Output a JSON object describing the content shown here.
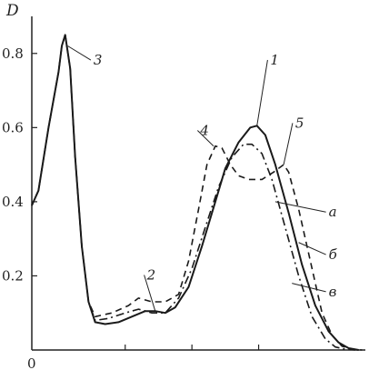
{
  "chart_data": {
    "type": "line",
    "title": "",
    "ylabel": "D",
    "xlabel": "",
    "xlim": [
      0,
      1
    ],
    "ylim": [
      0,
      0.9
    ],
    "y_ticks": [
      {
        "value": 0.2,
        "label": "0.2"
      },
      {
        "value": 0.4,
        "label": "0.4"
      },
      {
        "value": 0.6,
        "label": "0.6"
      },
      {
        "value": 0.8,
        "label": "0.8"
      }
    ],
    "x_origin_label": "0",
    "x_minor_ticks": [
      0.28,
      0.48,
      0.68
    ],
    "grid": false,
    "legend": "none",
    "series": [
      {
        "label_marker": "а",
        "style": "solid",
        "points": [
          [
            0.0,
            0.39
          ],
          [
            0.02,
            0.43
          ],
          [
            0.05,
            0.6
          ],
          [
            0.08,
            0.75
          ],
          [
            0.09,
            0.82
          ],
          [
            0.1,
            0.85
          ],
          [
            0.115,
            0.76
          ],
          [
            0.13,
            0.52
          ],
          [
            0.15,
            0.28
          ],
          [
            0.17,
            0.13
          ],
          [
            0.19,
            0.075
          ],
          [
            0.22,
            0.07
          ],
          [
            0.26,
            0.075
          ],
          [
            0.3,
            0.09
          ],
          [
            0.34,
            0.105
          ],
          [
            0.37,
            0.105
          ],
          [
            0.4,
            0.1
          ],
          [
            0.43,
            0.115
          ],
          [
            0.47,
            0.17
          ],
          [
            0.51,
            0.28
          ],
          [
            0.55,
            0.4
          ],
          [
            0.58,
            0.49
          ],
          [
            0.62,
            0.56
          ],
          [
            0.655,
            0.6
          ],
          [
            0.675,
            0.605
          ],
          [
            0.7,
            0.58
          ],
          [
            0.73,
            0.5
          ],
          [
            0.77,
            0.37
          ],
          [
            0.81,
            0.23
          ],
          [
            0.85,
            0.12
          ],
          [
            0.89,
            0.05
          ],
          [
            0.92,
            0.02
          ],
          [
            0.95,
            0.005
          ],
          [
            0.98,
            0.0
          ]
        ]
      },
      {
        "label_marker": "б",
        "style": "dashed",
        "points": [
          [
            0.0,
            0.39
          ],
          [
            0.02,
            0.43
          ],
          [
            0.05,
            0.6
          ],
          [
            0.08,
            0.75
          ],
          [
            0.09,
            0.82
          ],
          [
            0.1,
            0.85
          ],
          [
            0.115,
            0.76
          ],
          [
            0.13,
            0.52
          ],
          [
            0.15,
            0.28
          ],
          [
            0.17,
            0.13
          ],
          [
            0.19,
            0.09
          ],
          [
            0.24,
            0.1
          ],
          [
            0.29,
            0.12
          ],
          [
            0.32,
            0.14
          ],
          [
            0.36,
            0.13
          ],
          [
            0.4,
            0.13
          ],
          [
            0.44,
            0.15
          ],
          [
            0.47,
            0.24
          ],
          [
            0.5,
            0.38
          ],
          [
            0.525,
            0.5
          ],
          [
            0.55,
            0.55
          ],
          [
            0.57,
            0.545
          ],
          [
            0.595,
            0.5
          ],
          [
            0.62,
            0.47
          ],
          [
            0.65,
            0.46
          ],
          [
            0.69,
            0.46
          ],
          [
            0.725,
            0.48
          ],
          [
            0.755,
            0.5
          ],
          [
            0.77,
            0.48
          ],
          [
            0.8,
            0.38
          ],
          [
            0.84,
            0.22
          ],
          [
            0.87,
            0.1
          ],
          [
            0.9,
            0.04
          ],
          [
            0.93,
            0.01
          ],
          [
            0.96,
            0.002
          ],
          [
            0.99,
            0.0
          ]
        ]
      },
      {
        "label_marker": "в",
        "style": "dash-dot",
        "points": [
          [
            0.0,
            0.39
          ],
          [
            0.02,
            0.43
          ],
          [
            0.05,
            0.6
          ],
          [
            0.08,
            0.75
          ],
          [
            0.09,
            0.82
          ],
          [
            0.1,
            0.85
          ],
          [
            0.115,
            0.76
          ],
          [
            0.13,
            0.52
          ],
          [
            0.15,
            0.28
          ],
          [
            0.17,
            0.13
          ],
          [
            0.19,
            0.08
          ],
          [
            0.23,
            0.085
          ],
          [
            0.28,
            0.1
          ],
          [
            0.32,
            0.11
          ],
          [
            0.36,
            0.1
          ],
          [
            0.4,
            0.1
          ],
          [
            0.44,
            0.14
          ],
          [
            0.48,
            0.22
          ],
          [
            0.52,
            0.33
          ],
          [
            0.56,
            0.44
          ],
          [
            0.6,
            0.52
          ],
          [
            0.635,
            0.555
          ],
          [
            0.66,
            0.555
          ],
          [
            0.69,
            0.53
          ],
          [
            0.72,
            0.46
          ],
          [
            0.76,
            0.33
          ],
          [
            0.8,
            0.2
          ],
          [
            0.84,
            0.09
          ],
          [
            0.88,
            0.03
          ],
          [
            0.91,
            0.008
          ],
          [
            0.94,
            0.002
          ],
          [
            0.97,
            0.0
          ]
        ]
      }
    ],
    "annotations": [
      {
        "text": "1",
        "at": [
          0.715,
          0.77
        ],
        "leader_to": [
          0.675,
          0.605
        ]
      },
      {
        "text": "2",
        "at": [
          0.345,
          0.19
        ],
        "leader_to": [
          0.37,
          0.105
        ]
      },
      {
        "text": "3",
        "at": [
          0.185,
          0.77
        ],
        "leader_to": [
          0.108,
          0.82
        ]
      },
      {
        "text": "4",
        "at": [
          0.505,
          0.58
        ],
        "leader_to": [
          0.545,
          0.55
        ]
      },
      {
        "text": "5",
        "at": [
          0.79,
          0.6
        ],
        "leader_to": [
          0.755,
          0.5
        ]
      },
      {
        "text": "а",
        "at": [
          0.89,
          0.36
        ],
        "leader_to": [
          0.73,
          0.4
        ]
      },
      {
        "text": "б",
        "at": [
          0.89,
          0.245
        ],
        "leader_to": [
          0.8,
          0.29
        ]
      },
      {
        "text": "в",
        "at": [
          0.89,
          0.145
        ],
        "leader_to": [
          0.78,
          0.18
        ]
      }
    ]
  }
}
